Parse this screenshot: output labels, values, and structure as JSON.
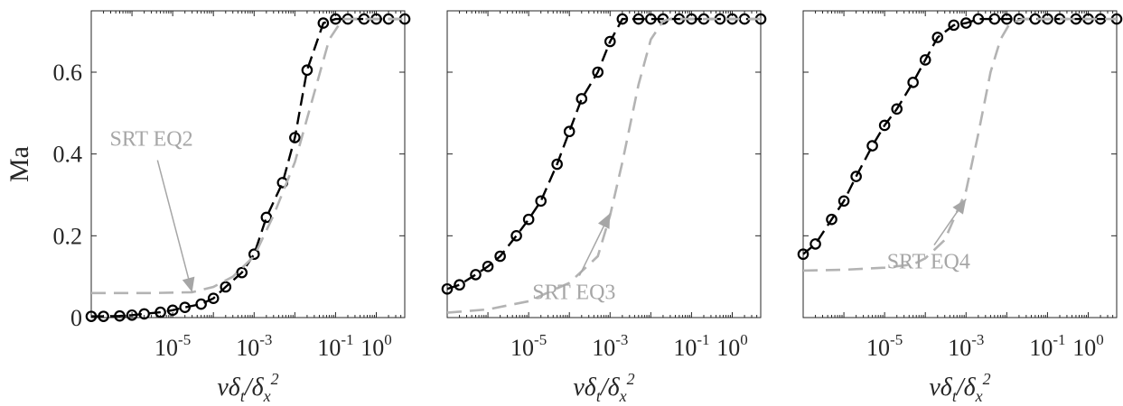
{
  "chart_data": [
    {
      "type": "line",
      "ylabel": "Ma",
      "xlabel": "νδ_t/δ_x^2",
      "x_scale": "log",
      "xlim": [
        1e-07,
        5
      ],
      "ylim": [
        0,
        0.75
      ],
      "x_ticks": [
        {
          "value": 1e-05,
          "base": "10",
          "exp": "-5"
        },
        {
          "value": 0.001,
          "base": "10",
          "exp": "-3"
        },
        {
          "value": 0.1,
          "base": "10",
          "exp": "-1"
        },
        {
          "value": 1,
          "base": "10",
          "exp": "0"
        }
      ],
      "y_ticks": [
        {
          "value": 0,
          "label": "0"
        },
        {
          "value": 0.2,
          "label": "0.2"
        },
        {
          "value": 0.4,
          "label": "0.4"
        },
        {
          "value": 0.6,
          "label": "0.6"
        }
      ],
      "series": [
        {
          "style": "black dashed with circles",
          "color": "#000000",
          "x": [
            1e-07,
            2e-07,
            5e-07,
            1e-06,
            2e-06,
            5e-06,
            1e-05,
            2e-05,
            5e-05,
            0.0001,
            0.0002,
            0.0005,
            0.001,
            0.002,
            0.005,
            0.01,
            0.02,
            0.05,
            0.1,
            0.2,
            0.5,
            1,
            2,
            5
          ],
          "y": [
            0.003,
            0.003,
            0.004,
            0.006,
            0.009,
            0.013,
            0.018,
            0.025,
            0.033,
            0.047,
            0.075,
            0.11,
            0.155,
            0.245,
            0.33,
            0.44,
            0.605,
            0.72,
            0.73,
            0.73,
            0.73,
            0.73,
            0.73,
            0.73
          ]
        },
        {
          "style": "light gray dashed",
          "color": "#b3b3b3",
          "x": [
            1e-07,
            3e-06,
            3e-05,
            0.0001,
            0.0003,
            0.001,
            0.003,
            0.01,
            0.03,
            0.07,
            0.15,
            5
          ],
          "y": [
            0.06,
            0.06,
            0.062,
            0.075,
            0.1,
            0.15,
            0.25,
            0.38,
            0.55,
            0.68,
            0.73,
            0.73
          ]
        }
      ],
      "annotations": [
        {
          "text": "SRT EQ2",
          "color": "#a6a6a6",
          "label_x": 3e-06,
          "label_y": 0.42,
          "arrow_to_x": 3e-05,
          "arrow_to_y": 0.062
        }
      ]
    },
    {
      "type": "line",
      "ylabel": "",
      "xlabel": "νδ_t/δ_x^2",
      "x_scale": "log",
      "xlim": [
        1e-07,
        5
      ],
      "ylim": [
        0,
        0.75
      ],
      "x_ticks": [
        {
          "value": 1e-05,
          "base": "10",
          "exp": "-5"
        },
        {
          "value": 0.001,
          "base": "10",
          "exp": "-3"
        },
        {
          "value": 0.1,
          "base": "10",
          "exp": "-1"
        },
        {
          "value": 1,
          "base": "10",
          "exp": "0"
        }
      ],
      "y_ticks": [],
      "series": [
        {
          "style": "black dashed with circles",
          "color": "#000000",
          "x": [
            1e-07,
            2e-07,
            5e-07,
            1e-06,
            2e-06,
            5e-06,
            1e-05,
            2e-05,
            5e-05,
            0.0001,
            0.0002,
            0.0005,
            0.001,
            0.002,
            0.005,
            0.01,
            0.02,
            0.05,
            0.1,
            0.2,
            0.5,
            1,
            2,
            5
          ],
          "y": [
            0.07,
            0.08,
            0.105,
            0.125,
            0.15,
            0.2,
            0.24,
            0.285,
            0.375,
            0.455,
            0.535,
            0.6,
            0.675,
            0.73,
            0.73,
            0.73,
            0.73,
            0.73,
            0.73,
            0.73,
            0.73,
            0.73,
            0.73,
            0.73
          ]
        },
        {
          "style": "light gray dashed",
          "color": "#b3b3b3",
          "x": [
            1e-07,
            1e-06,
            1e-05,
            0.0001,
            0.0005,
            0.001,
            0.002,
            0.005,
            0.01,
            0.02,
            0.03,
            5
          ],
          "y": [
            0.012,
            0.02,
            0.04,
            0.085,
            0.15,
            0.25,
            0.38,
            0.57,
            0.68,
            0.725,
            0.73,
            0.73
          ]
        }
      ],
      "annotations": [
        {
          "text": "SRT EQ3",
          "color": "#a6a6a6",
          "label_x": 0.00013,
          "label_y": 0.045,
          "arrow_to_x": 0.001,
          "arrow_to_y": 0.255
        }
      ]
    },
    {
      "type": "line",
      "ylabel": "",
      "xlabel": "νδ_t/δ_x^2",
      "x_scale": "log",
      "xlim": [
        1e-07,
        5
      ],
      "ylim": [
        0,
        0.75
      ],
      "x_ticks": [
        {
          "value": 1e-05,
          "base": "10",
          "exp": "-5"
        },
        {
          "value": 0.001,
          "base": "10",
          "exp": "-3"
        },
        {
          "value": 0.1,
          "base": "10",
          "exp": "-1"
        },
        {
          "value": 1,
          "base": "10",
          "exp": "0"
        }
      ],
      "y_ticks": [],
      "series": [
        {
          "style": "black dashed with circles",
          "color": "#000000",
          "x": [
            1e-07,
            2e-07,
            5e-07,
            1e-06,
            2e-06,
            5e-06,
            1e-05,
            2e-05,
            5e-05,
            0.0001,
            0.0002,
            0.0005,
            0.001,
            0.002,
            0.005,
            0.01,
            0.02,
            0.05,
            0.1,
            0.2,
            0.5,
            1,
            2,
            5
          ],
          "y": [
            0.155,
            0.18,
            0.24,
            0.285,
            0.345,
            0.42,
            0.47,
            0.51,
            0.575,
            0.63,
            0.685,
            0.715,
            0.72,
            0.73,
            0.73,
            0.73,
            0.73,
            0.73,
            0.73,
            0.73,
            0.73,
            0.73,
            0.73,
            0.73
          ]
        },
        {
          "style": "light gray dashed",
          "color": "#b3b3b3",
          "x": [
            1e-07,
            1e-06,
            1e-05,
            5e-05,
            0.0001,
            0.0003,
            0.001,
            0.002,
            0.004,
            0.007,
            0.012,
            0.025,
            5
          ],
          "y": [
            0.115,
            0.117,
            0.122,
            0.13,
            0.145,
            0.19,
            0.31,
            0.45,
            0.6,
            0.68,
            0.72,
            0.73,
            0.73
          ]
        }
      ],
      "annotations": [
        {
          "text": "SRT EQ4",
          "color": "#a6a6a6",
          "label_x": 0.00012,
          "label_y": 0.12,
          "arrow_to_x": 0.001,
          "arrow_to_y": 0.29
        }
      ]
    }
  ]
}
